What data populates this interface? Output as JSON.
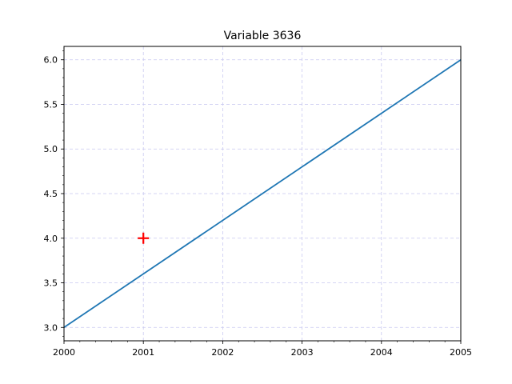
{
  "chart_data": {
    "type": "line",
    "title": "Variable 3636",
    "xlabel": "",
    "ylabel": "",
    "xlim": [
      2000,
      2005
    ],
    "ylim": [
      2.85,
      6.15
    ],
    "x_ticks": [
      "2000",
      "2001",
      "2002",
      "2003",
      "2004",
      "2005"
    ],
    "y_ticks": [
      "3.0",
      "3.5",
      "4.0",
      "4.5",
      "5.0",
      "5.5",
      "6.0"
    ],
    "grid": true,
    "grid_style": "dashed",
    "grid_color": "#c8c8f0",
    "series": [
      {
        "color": "#1f77b4",
        "x": [
          2000,
          2005
        ],
        "y": [
          3.0,
          6.0
        ]
      }
    ],
    "markers": [
      {
        "x": 2001,
        "y": 4.0,
        "symbol": "plus",
        "color": "#ff0000"
      }
    ]
  }
}
